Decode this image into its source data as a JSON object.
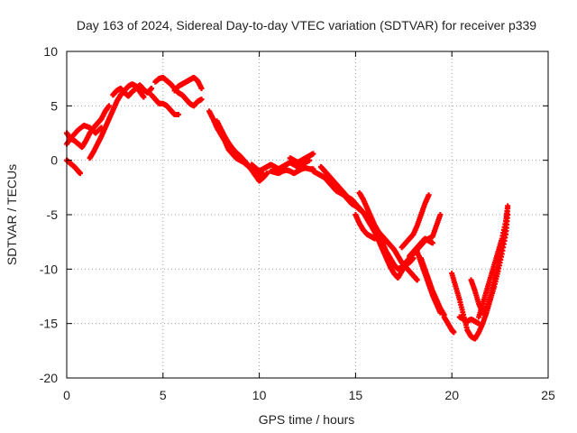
{
  "chart_data": {
    "type": "scatter",
    "title": "Day 163 of 2024, Sidereal Day-to-day VTEC variation (SDTVAR) for receiver p339",
    "xlabel": "GPS time / hours",
    "ylabel": "SDTVAR / TECUs",
    "xlim": [
      0,
      25
    ],
    "ylim": [
      -20,
      10
    ],
    "xticks": [
      0,
      5,
      10,
      15,
      20,
      25
    ],
    "yticks": [
      10,
      5,
      0,
      -5,
      -10,
      -15,
      -20
    ],
    "grid": true,
    "legend": "none",
    "marker": "plus",
    "color": "#ff0000",
    "series": [
      {
        "points": [
          [
            0.0,
            2.5
          ],
          [
            0.2,
            2.0
          ],
          [
            0.4,
            1.8
          ],
          [
            0.6,
            1.5
          ],
          [
            0.8,
            1.2
          ],
          [
            1.0,
            1.8
          ],
          [
            1.2,
            2.5
          ],
          [
            1.4,
            3.0
          ],
          [
            1.6,
            3.4
          ],
          [
            1.8,
            3.8
          ],
          [
            2.0,
            4.5
          ],
          [
            2.2,
            5.0
          ]
        ]
      },
      {
        "points": [
          [
            0.0,
            0.0
          ],
          [
            0.2,
            -0.3
          ],
          [
            0.4,
            -0.6
          ],
          [
            0.6,
            -1.0
          ],
          [
            0.7,
            -1.2
          ]
        ]
      },
      {
        "points": [
          [
            0.0,
            1.5
          ],
          [
            0.3,
            2.2
          ],
          [
            0.6,
            2.8
          ],
          [
            0.9,
            3.2
          ],
          [
            1.2,
            3.0
          ],
          [
            1.5,
            2.5
          ],
          [
            1.8,
            3.0
          ]
        ]
      },
      {
        "points": [
          [
            1.2,
            0.2
          ],
          [
            1.4,
            0.8
          ],
          [
            1.6,
            1.5
          ],
          [
            1.8,
            2.2
          ],
          [
            2.0,
            3.0
          ],
          [
            2.2,
            3.8
          ],
          [
            2.4,
            4.6
          ],
          [
            2.6,
            5.4
          ],
          [
            2.8,
            6.0
          ],
          [
            3.0,
            6.4
          ],
          [
            3.2,
            6.8
          ],
          [
            3.4,
            7.0
          ],
          [
            3.6,
            6.8
          ],
          [
            3.8,
            6.3
          ],
          [
            4.0,
            5.8
          ]
        ]
      },
      {
        "points": [
          [
            2.4,
            6.0
          ],
          [
            2.6,
            6.4
          ],
          [
            2.8,
            6.6
          ],
          [
            3.0,
            6.2
          ],
          [
            3.2,
            5.9
          ],
          [
            3.4,
            6.3
          ],
          [
            3.6,
            6.6
          ],
          [
            3.8,
            6.9
          ],
          [
            4.0,
            6.5
          ],
          [
            4.2,
            6.2
          ],
          [
            4.4,
            6.6
          ]
        ]
      },
      {
        "points": [
          [
            4.4,
            6.0
          ],
          [
            4.6,
            5.6
          ],
          [
            4.8,
            5.2
          ],
          [
            5.0,
            5.2
          ],
          [
            5.2,
            5.0
          ],
          [
            5.4,
            4.6
          ],
          [
            5.6,
            4.2
          ],
          [
            5.8,
            4.2
          ]
        ]
      },
      {
        "points": [
          [
            4.6,
            7.2
          ],
          [
            4.8,
            7.5
          ],
          [
            5.0,
            7.6
          ],
          [
            5.2,
            7.3
          ],
          [
            5.4,
            7.0
          ],
          [
            5.6,
            6.6
          ],
          [
            5.8,
            6.2
          ],
          [
            6.0,
            6.0
          ],
          [
            6.2,
            5.6
          ],
          [
            6.4,
            5.2
          ],
          [
            6.6,
            5.0
          ],
          [
            6.8,
            5.4
          ],
          [
            7.0,
            5.6
          ]
        ]
      },
      {
        "points": [
          [
            5.6,
            6.4
          ],
          [
            5.8,
            6.8
          ],
          [
            6.0,
            7.0
          ],
          [
            6.2,
            7.2
          ],
          [
            6.4,
            7.4
          ],
          [
            6.6,
            7.6
          ],
          [
            6.8,
            7.3
          ],
          [
            7.0,
            6.6
          ]
        ]
      },
      {
        "points": [
          [
            7.4,
            4.5
          ],
          [
            7.6,
            3.8
          ],
          [
            7.8,
            3.0
          ],
          [
            8.0,
            2.4
          ],
          [
            8.2,
            1.8
          ],
          [
            8.4,
            1.0
          ],
          [
            8.6,
            0.6
          ],
          [
            8.8,
            0.2
          ],
          [
            9.0,
            0.0
          ],
          [
            9.2,
            -0.2
          ],
          [
            9.4,
            -0.5
          ],
          [
            9.6,
            -0.8
          ],
          [
            9.8,
            -1.2
          ],
          [
            10.0,
            -1.5
          ],
          [
            10.2,
            -1.3
          ]
        ]
      },
      {
        "points": [
          [
            7.8,
            3.6
          ],
          [
            8.0,
            2.9
          ],
          [
            8.2,
            2.2
          ],
          [
            8.4,
            1.6
          ],
          [
            8.6,
            1.1
          ],
          [
            8.8,
            0.7
          ],
          [
            9.0,
            0.4
          ],
          [
            9.2,
            0.0
          ],
          [
            9.4,
            -0.4
          ],
          [
            9.6,
            -0.9
          ],
          [
            9.8,
            -1.4
          ],
          [
            10.0,
            -1.9
          ],
          [
            10.2,
            -1.6
          ],
          [
            10.4,
            -1.2
          ]
        ]
      },
      {
        "points": [
          [
            9.6,
            -0.4
          ],
          [
            9.8,
            -0.7
          ],
          [
            10.0,
            -1.0
          ],
          [
            10.2,
            -0.8
          ],
          [
            10.4,
            -0.6
          ],
          [
            10.6,
            -0.4
          ],
          [
            10.8,
            -0.6
          ],
          [
            11.0,
            -0.8
          ],
          [
            11.2,
            -0.6
          ],
          [
            11.4,
            -0.4
          ],
          [
            11.6,
            -0.2
          ],
          [
            11.8,
            -0.4
          ],
          [
            12.0,
            -0.6
          ],
          [
            12.2,
            -0.4
          ],
          [
            12.4,
            -0.2
          ],
          [
            12.6,
            0.0
          ]
        ]
      },
      {
        "points": [
          [
            10.6,
            -1.0
          ],
          [
            10.8,
            -1.1
          ],
          [
            11.0,
            -1.2
          ],
          [
            11.2,
            -1.0
          ],
          [
            11.4,
            -0.9
          ],
          [
            11.6,
            -1.0
          ],
          [
            11.8,
            -1.2
          ],
          [
            12.0,
            -1.0
          ],
          [
            12.2,
            -0.8
          ],
          [
            12.4,
            -0.7
          ],
          [
            12.6,
            -0.8
          ],
          [
            12.8,
            -0.8
          ]
        ]
      },
      {
        "points": [
          [
            11.6,
            0.2
          ],
          [
            11.8,
            0.0
          ],
          [
            12.0,
            -0.2
          ],
          [
            12.2,
            0.0
          ],
          [
            12.4,
            0.2
          ],
          [
            12.6,
            0.4
          ],
          [
            12.8,
            0.6
          ]
        ]
      },
      {
        "points": [
          [
            12.8,
            -1.0
          ],
          [
            13.0,
            -1.2
          ],
          [
            13.2,
            -1.4
          ],
          [
            13.4,
            -1.6
          ],
          [
            13.6,
            -2.0
          ],
          [
            13.8,
            -2.4
          ],
          [
            14.0,
            -2.8
          ],
          [
            14.2,
            -3.0
          ],
          [
            14.4,
            -3.2
          ],
          [
            14.6,
            -3.6
          ],
          [
            14.8,
            -4.0
          ],
          [
            15.0,
            -4.2
          ],
          [
            15.2,
            -4.5
          ],
          [
            15.4,
            -4.8
          ],
          [
            15.6,
            -5.2
          ],
          [
            15.8,
            -5.6
          ],
          [
            16.0,
            -6.0
          ],
          [
            16.2,
            -6.8
          ],
          [
            16.4,
            -7.6
          ],
          [
            16.6,
            -8.4
          ],
          [
            16.8,
            -9.0
          ],
          [
            17.0,
            -9.6
          ],
          [
            17.2,
            -10.0
          ],
          [
            17.4,
            -9.8
          ],
          [
            17.6,
            -9.4
          ],
          [
            17.8,
            -9.0
          ],
          [
            18.0,
            -8.6
          ],
          [
            18.2,
            -8.2
          ],
          [
            18.4,
            -7.8
          ],
          [
            18.6,
            -7.4
          ],
          [
            18.8,
            -7.2
          ],
          [
            19.0,
            -7.0
          ],
          [
            19.2,
            -6.0
          ],
          [
            19.4,
            -5.0
          ]
        ]
      },
      {
        "points": [
          [
            13.2,
            -0.6
          ],
          [
            13.4,
            -1.0
          ],
          [
            13.6,
            -1.4
          ],
          [
            13.8,
            -1.8
          ],
          [
            14.0,
            -2.2
          ],
          [
            14.2,
            -2.6
          ],
          [
            14.4,
            -3.0
          ],
          [
            14.6,
            -3.4
          ],
          [
            14.8,
            -3.6
          ],
          [
            15.0,
            -4.0
          ],
          [
            15.2,
            -4.4
          ],
          [
            15.4,
            -4.8
          ],
          [
            15.6,
            -5.4
          ],
          [
            15.8,
            -6.0
          ],
          [
            16.0,
            -6.6
          ],
          [
            16.2,
            -7.4
          ],
          [
            16.4,
            -8.2
          ],
          [
            16.6,
            -9.0
          ],
          [
            16.8,
            -9.8
          ],
          [
            17.0,
            -10.4
          ],
          [
            17.2,
            -10.8
          ],
          [
            17.4,
            -10.2
          ],
          [
            17.6,
            -9.6
          ],
          [
            17.8,
            -9.4
          ],
          [
            18.0,
            -9.0
          ]
        ]
      },
      {
        "points": [
          [
            15.2,
            -3.0
          ],
          [
            15.4,
            -3.6
          ],
          [
            15.6,
            -4.4
          ],
          [
            15.8,
            -5.2
          ],
          [
            16.0,
            -6.0
          ],
          [
            16.2,
            -6.6
          ],
          [
            16.4,
            -7.0
          ],
          [
            16.6,
            -7.4
          ],
          [
            16.8,
            -7.8
          ],
          [
            17.0,
            -8.2
          ],
          [
            17.2,
            -8.8
          ],
          [
            17.4,
            -9.4
          ],
          [
            17.6,
            -9.8
          ],
          [
            17.8,
            -10.2
          ],
          [
            18.0,
            -10.6
          ],
          [
            18.2,
            -11.0
          ]
        ]
      },
      {
        "points": [
          [
            15.0,
            -5.0
          ],
          [
            15.2,
            -5.8
          ],
          [
            15.4,
            -6.4
          ],
          [
            15.6,
            -6.8
          ],
          [
            15.8,
            -7.0
          ],
          [
            16.0,
            -7.2
          ]
        ]
      },
      {
        "points": [
          [
            17.4,
            -8.0
          ],
          [
            17.6,
            -7.6
          ],
          [
            17.8,
            -7.2
          ],
          [
            18.0,
            -6.8
          ],
          [
            18.2,
            -6.0
          ],
          [
            18.4,
            -5.0
          ],
          [
            18.6,
            -4.0
          ],
          [
            18.8,
            -3.2
          ]
        ]
      },
      {
        "points": [
          [
            17.8,
            -8.8
          ],
          [
            18.0,
            -8.4
          ],
          [
            18.2,
            -8.0
          ],
          [
            18.4,
            -7.6
          ],
          [
            18.6,
            -7.2
          ],
          [
            18.8,
            -7.4
          ],
          [
            19.0,
            -7.6
          ]
        ]
      },
      {
        "points": [
          [
            18.4,
            -9.0
          ],
          [
            18.6,
            -10.0
          ],
          [
            18.8,
            -11.0
          ],
          [
            19.0,
            -12.0
          ],
          [
            19.2,
            -12.8
          ],
          [
            19.4,
            -13.6
          ],
          [
            19.6,
            -14.2
          ]
        ]
      },
      {
        "points": [
          [
            18.2,
            -8.4
          ],
          [
            18.4,
            -9.4
          ],
          [
            18.6,
            -10.4
          ],
          [
            18.8,
            -11.4
          ],
          [
            19.0,
            -12.4
          ],
          [
            19.2,
            -13.2
          ],
          [
            19.4,
            -14.0
          ]
        ]
      },
      {
        "points": [
          [
            19.6,
            -14.4
          ],
          [
            19.8,
            -15.0
          ],
          [
            20.0,
            -15.6
          ],
          [
            20.1,
            -15.8
          ]
        ]
      },
      {
        "points": [
          [
            20.0,
            -10.4
          ],
          [
            20.2,
            -11.6
          ],
          [
            20.4,
            -12.8
          ],
          [
            20.6,
            -14.2
          ],
          [
            20.8,
            -15.6
          ],
          [
            21.0,
            -16.2
          ],
          [
            21.2,
            -16.4
          ],
          [
            21.4,
            -15.8
          ],
          [
            21.6,
            -15.0
          ],
          [
            21.8,
            -14.0
          ],
          [
            22.0,
            -12.8
          ],
          [
            22.2,
            -11.6
          ],
          [
            22.4,
            -10.2
          ],
          [
            22.6,
            -8.6
          ],
          [
            22.8,
            -6.8
          ],
          [
            22.9,
            -5.0
          ]
        ]
      },
      {
        "points": [
          [
            20.4,
            -14.4
          ],
          [
            20.6,
            -14.6
          ],
          [
            20.8,
            -14.8
          ],
          [
            21.0,
            -14.6
          ],
          [
            21.2,
            -14.8
          ],
          [
            21.4,
            -15.0
          ]
        ]
      },
      {
        "points": [
          [
            21.0,
            -11.0
          ],
          [
            21.2,
            -12.0
          ],
          [
            21.4,
            -13.2
          ],
          [
            21.6,
            -14.0
          ],
          [
            21.8,
            -13.6
          ],
          [
            22.0,
            -12.4
          ],
          [
            22.2,
            -11.0
          ],
          [
            22.4,
            -9.6
          ],
          [
            22.6,
            -8.0
          ],
          [
            22.8,
            -6.2
          ],
          [
            22.9,
            -4.4
          ]
        ]
      },
      {
        "points": [
          [
            21.4,
            -14.4
          ],
          [
            21.6,
            -13.2
          ],
          [
            21.8,
            -12.0
          ],
          [
            22.0,
            -10.8
          ],
          [
            22.2,
            -9.6
          ],
          [
            22.4,
            -8.4
          ],
          [
            22.6,
            -7.2
          ],
          [
            22.8,
            -5.6
          ],
          [
            22.9,
            -4.2
          ]
        ]
      }
    ]
  }
}
